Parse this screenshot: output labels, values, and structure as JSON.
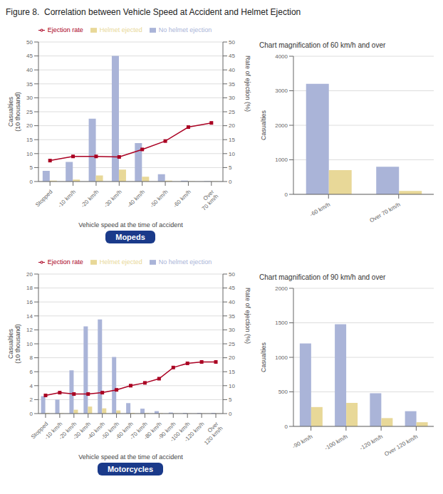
{
  "title": "Figure 8.  Correlation between Vehicle Speed at Accident and Helmet Ejection",
  "chart_data": [
    {
      "type": "bar",
      "annotations": [
        "Mopeds"
      ],
      "categories": [
        "Stopped",
        "-10 km/h",
        "-20 km/h",
        "-30 km/h",
        "-40 km/h",
        "-50 km/h",
        "-60 km/h",
        "Over\n70 km/h"
      ],
      "xlabel": "Vehicle speed at the time of accident",
      "ylabel": "Casualties\n(10 thousand)",
      "y2label": "Rate of ejection (%)",
      "ylim": [
        0,
        50
      ],
      "yticks": [
        0,
        5,
        10,
        15,
        20,
        25,
        30,
        35,
        40,
        45,
        50
      ],
      "y2lim": [
        0,
        50
      ],
      "y2ticks": [
        0,
        5,
        10,
        15,
        20,
        25,
        30,
        35,
        40,
        45,
        50
      ],
      "grid": true,
      "legend": "top",
      "series": [
        {
          "name": "No helmet ejection",
          "color": "#aab4d8",
          "values": [
            3.8,
            7.0,
            22.5,
            45.0,
            13.8,
            2.6,
            0.3,
            0.15
          ]
        },
        {
          "name": "Helmet ejected",
          "color": "#e8d898",
          "values": [
            0.3,
            0.7,
            2.2,
            4.3,
            1.7,
            0.3,
            0.05,
            0.05
          ]
        },
        {
          "name": "Ejection rate",
          "type": "line",
          "axis": "y2",
          "color": "#aa0022",
          "marker": "square",
          "values": [
            7.5,
            9.0,
            9.0,
            8.8,
            11.5,
            14.5,
            19.5,
            21.0
          ]
        }
      ]
    },
    {
      "type": "bar",
      "title": "Chart magnification of 60 km/h and over",
      "categories": [
        "-60 km/h",
        "Over 70 km/h"
      ],
      "ylabel": "Casualties",
      "ylim": [
        0,
        4000
      ],
      "yticks": [
        0,
        1000,
        2000,
        3000,
        4000
      ],
      "grid": true,
      "series": [
        {
          "color": "#aab4d8",
          "values": [
            3200,
            800
          ]
        },
        {
          "color": "#e8d898",
          "values": [
            700,
            100
          ]
        }
      ]
    },
    {
      "type": "bar",
      "annotations": [
        "Motorcycles"
      ],
      "categories": [
        "Stopped",
        "-10 km/h",
        "-20 km/h",
        "-30 km/h",
        "-40 km/h",
        "-50 km/h",
        "-60 km/h",
        "-70 km/h",
        "-80 km/h",
        "-90 km/h",
        "-100 km/h",
        "-120 km/h",
        "Over\n120 km/h"
      ],
      "xlabel": "Vehicle speed at the time of accident",
      "ylabel": "Casualties\n(10 thousand)",
      "y2label": "Rate of ejection (%)",
      "ylim": [
        0,
        20
      ],
      "yticks": [
        0,
        2,
        4,
        6,
        8,
        10,
        12,
        14,
        16,
        18,
        20
      ],
      "y2lim": [
        0,
        50
      ],
      "y2ticks": [
        0,
        5,
        10,
        15,
        20,
        25,
        30,
        35,
        40,
        45,
        50
      ],
      "grid": true,
      "legend": "top",
      "series": [
        {
          "name": "No helmet ejection",
          "color": "#aab4d8",
          "values": [
            2.5,
            2.0,
            6.2,
            12.5,
            13.5,
            8.1,
            1.5,
            0.7,
            0.35,
            0.15,
            0.1,
            0.1,
            0.1
          ]
        },
        {
          "name": "Helmet ejected",
          "color": "#e8d898",
          "values": [
            0.1,
            0.05,
            0.55,
            1.0,
            0.75,
            0.45,
            0.1,
            0.07,
            0.05,
            0.02,
            0.02,
            0.02,
            0.02
          ]
        },
        {
          "name": "Ejection rate",
          "type": "line",
          "axis": "y2",
          "color": "#aa0022",
          "marker": "square",
          "values": [
            6.5,
            7.5,
            7.0,
            7.0,
            7.5,
            8.5,
            10.0,
            11.0,
            12.5,
            16.5,
            18.0,
            18.5,
            18.5
          ]
        }
      ]
    },
    {
      "type": "bar",
      "title": "Chart magnification of 90 km/h and over",
      "categories": [
        "-90 km/h",
        "-100 km/h",
        "-120 km/h",
        "Over 120 km/h"
      ],
      "ylabel": "Casualties",
      "ylim": [
        0,
        2000
      ],
      "yticks": [
        0,
        500,
        1000,
        1500,
        2000
      ],
      "grid": true,
      "series": [
        {
          "color": "#aab4d8",
          "values": [
            1200,
            1480,
            480,
            220
          ]
        },
        {
          "color": "#e8d898",
          "values": [
            280,
            340,
            120,
            60
          ]
        }
      ]
    }
  ]
}
